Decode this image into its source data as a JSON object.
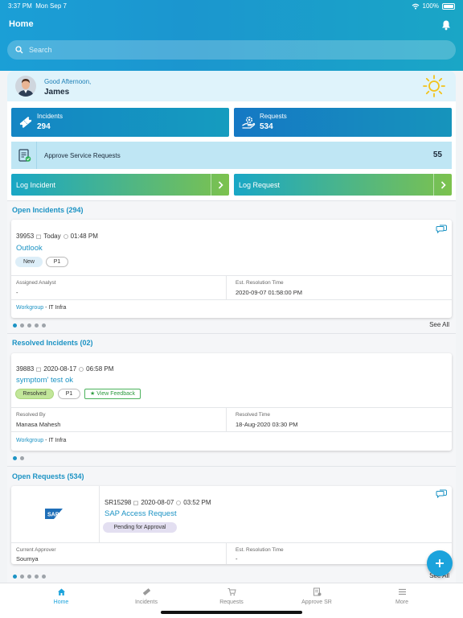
{
  "status": {
    "time": "3:37 PM",
    "date": "Mon Sep 7",
    "battery": "100%"
  },
  "header": {
    "title": "Home"
  },
  "search": {
    "placeholder": "Search"
  },
  "greeting": {
    "line": "Good Afternoon,",
    "name": "James"
  },
  "tiles": {
    "incidents": {
      "label": "Incidents",
      "value": "294"
    },
    "requests": {
      "label": "Requests",
      "value": "534"
    }
  },
  "approve": {
    "label": "Approve Service Requests",
    "count": "55"
  },
  "actions": {
    "log_incident": "Log Incident",
    "log_request": "Log Request"
  },
  "open_incidents": {
    "title": "Open Incidents (294)",
    "card": {
      "id": "39953",
      "date": "Today",
      "time": "01:48 PM",
      "title": "Outlook",
      "status": "New",
      "priority": "P1",
      "field1_label": "Assigned Analyst",
      "field1_value": "-",
      "field2_label": "Est. Resolution Time",
      "field2_value": "2020-09-07 01:58:00 PM",
      "workgroup_label": "Workgroup",
      "workgroup_value": "- IT Infra"
    },
    "see_all": "See All"
  },
  "resolved_incidents": {
    "title": "Resolved Incidents (02)",
    "card": {
      "id": "39883",
      "date": "2020-08-17",
      "time": "06:58 PM",
      "title": "symptom' test ok",
      "status": "Resolved",
      "priority": "P1",
      "feedback": "View Feedback",
      "field1_label": "Resolved By",
      "field1_value": "Manasa Mahesh",
      "field2_label": "Resolved Time",
      "field2_value": "18-Aug-2020 03:30 PM",
      "workgroup_label": "Workgroup",
      "workgroup_value": "- IT Infra"
    }
  },
  "open_requests": {
    "title": "Open Requests (534)",
    "card": {
      "logo_text": "SAP",
      "id": "SR15298",
      "date": "2020-08-07",
      "time": "03:52 PM",
      "title": "SAP Access Request",
      "status": "Pending for Approval",
      "field1_label": "Current Approver",
      "field1_value": "Soumya",
      "field2_label": "Est. Resolution Time",
      "field2_value": "-"
    },
    "see_all": "See All"
  },
  "tabbar": [
    {
      "label": "Home",
      "icon": "home-icon"
    },
    {
      "label": "Incidents",
      "icon": "ticket-icon"
    },
    {
      "label": "Requests",
      "icon": "cart-icon"
    },
    {
      "label": "Approve SR",
      "icon": "clipboard-check-icon"
    },
    {
      "label": "More",
      "icon": "menu-icon"
    }
  ],
  "colors": {
    "accent": "#1ba3dc",
    "header_start": "#1b9fd6",
    "green": "#7cc24e"
  }
}
